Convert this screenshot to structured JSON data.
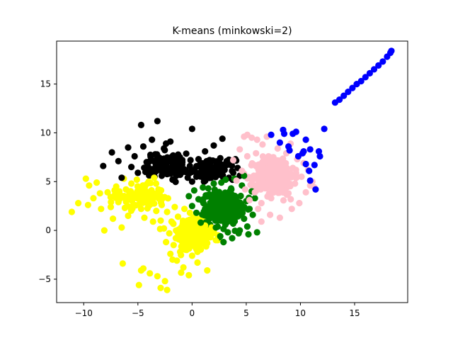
{
  "chart_data": {
    "type": "scatter",
    "title": "K-means (minkowski=2)",
    "xlabel": "",
    "ylabel": "",
    "xlim": [
      -12.5,
      19.9
    ],
    "ylim": [
      -7.4,
      19.4
    ],
    "xticks": [
      -10,
      -5,
      0,
      5,
      10,
      15
    ],
    "yticks": [
      -5,
      0,
      5,
      10,
      15
    ],
    "grid": false,
    "legend": "none",
    "series": [
      {
        "color": "#ffff00",
        "points": [
          [
            -11.1,
            1.9
          ],
          [
            -10.5,
            2.8
          ],
          [
            -9.8,
            5.3
          ],
          [
            -9.6,
            2.6
          ],
          [
            -9.5,
            4.6
          ],
          [
            -9.1,
            3.3
          ],
          [
            -8.8,
            4.9
          ],
          [
            -8.5,
            3.8
          ],
          [
            -8.4,
            2.2
          ],
          [
            -8.1,
            0.0
          ],
          [
            -7.8,
            3.9
          ],
          [
            -7.5,
            2.4
          ],
          [
            -7.3,
            1.2
          ],
          [
            -7.0,
            4.5
          ],
          [
            -6.8,
            2.9
          ],
          [
            -6.6,
            3.6
          ],
          [
            -6.5,
            0.3
          ],
          [
            -6.3,
            5.3
          ],
          [
            -6.2,
            2.3
          ],
          [
            -6.1,
            4.2
          ],
          [
            -5.9,
            1.5
          ],
          [
            -5.7,
            3.4
          ],
          [
            -5.6,
            4.8
          ],
          [
            -5.3,
            2.6
          ],
          [
            -5.1,
            5.2
          ],
          [
            -4.9,
            3.9
          ],
          [
            -4.7,
            2.2
          ],
          [
            -4.5,
            4.6
          ],
          [
            -4.4,
            1.3
          ],
          [
            -4.2,
            3.1
          ],
          [
            -4.0,
            5.0
          ],
          [
            -3.8,
            2.7
          ],
          [
            -3.7,
            3.9
          ],
          [
            -3.5,
            5.4
          ],
          [
            -3.3,
            2.0
          ],
          [
            -3.1,
            4.2
          ],
          [
            -2.9,
            1.0
          ],
          [
            -2.7,
            3.3
          ],
          [
            -2.6,
            0.2
          ],
          [
            -2.4,
            -1.2
          ],
          [
            -2.3,
            1.9
          ],
          [
            -2.1,
            -0.3
          ],
          [
            -2.0,
            -2.4
          ],
          [
            -1.9,
            0.9
          ],
          [
            -1.7,
            -1.5
          ],
          [
            -1.6,
            2.4
          ],
          [
            -1.5,
            -0.8
          ],
          [
            -1.4,
            -3.1
          ],
          [
            -1.3,
            1.4
          ],
          [
            -1.1,
            -2.2
          ],
          [
            -1.0,
            0.3
          ],
          [
            -0.9,
            -1.0
          ],
          [
            -0.8,
            -3.8
          ],
          [
            -0.7,
            2.2
          ],
          [
            -0.6,
            -0.4
          ],
          [
            -0.5,
            -2.0
          ],
          [
            -0.4,
            0.9
          ],
          [
            -0.3,
            -1.4
          ],
          [
            -0.2,
            1.8
          ],
          [
            -0.1,
            -0.7
          ],
          [
            0.0,
            -2.6
          ],
          [
            0.1,
            0.4
          ],
          [
            0.2,
            -1.6
          ],
          [
            0.3,
            1.1
          ],
          [
            0.4,
            -0.5
          ],
          [
            0.5,
            -2.2
          ],
          [
            0.7,
            0.2
          ],
          [
            0.8,
            -1.2
          ],
          [
            0.9,
            -0.2
          ],
          [
            1.1,
            -0.9
          ],
          [
            1.2,
            0.5
          ],
          [
            1.4,
            -1.3
          ],
          [
            1.5,
            -0.1
          ],
          [
            1.7,
            -0.7
          ],
          [
            1.8,
            0.3
          ],
          [
            2.0,
            -0.3
          ],
          [
            2.2,
            -1.0
          ],
          [
            2.4,
            -0.5
          ],
          [
            -4.7,
            -4.1
          ],
          [
            -4.5,
            -3.9
          ],
          [
            -3.9,
            -4.4
          ],
          [
            -3.2,
            -4.7
          ],
          [
            -2.5,
            -5.2
          ],
          [
            -2.3,
            -6.1
          ],
          [
            -2.9,
            -5.9
          ],
          [
            -4.9,
            -5.6
          ],
          [
            -6.4,
            -3.4
          ],
          [
            -1.8,
            -3.0
          ],
          [
            -0.3,
            -4.6
          ],
          [
            0.5,
            -3.3
          ],
          [
            1.4,
            -4.1
          ],
          [
            -5.4,
            3.7
          ],
          [
            -3.6,
            0.9
          ],
          [
            -2.8,
            2.6
          ]
        ]
      },
      {
        "color": "#000000",
        "points": [
          [
            -8.2,
            6.6
          ],
          [
            -7.4,
            8.0
          ],
          [
            -6.8,
            7.1
          ],
          [
            -6.5,
            5.4
          ],
          [
            -5.9,
            8.5
          ],
          [
            -5.6,
            6.5
          ],
          [
            -5.3,
            7.6
          ],
          [
            -5.0,
            5.9
          ],
          [
            -4.7,
            10.8
          ],
          [
            -4.5,
            8.6
          ],
          [
            -4.2,
            7.0
          ],
          [
            -3.9,
            6.2
          ],
          [
            -3.7,
            9.3
          ],
          [
            -3.4,
            7.8
          ],
          [
            -3.2,
            11.2
          ],
          [
            -3.0,
            6.8
          ],
          [
            -2.8,
            5.6
          ],
          [
            -2.6,
            8.4
          ],
          [
            -2.4,
            7.3
          ],
          [
            -2.2,
            6.1
          ],
          [
            -2.0,
            9.1
          ],
          [
            -1.8,
            5.2
          ],
          [
            -1.6,
            7.6
          ],
          [
            -1.3,
            6.4
          ],
          [
            -1.1,
            5.7
          ],
          [
            -0.9,
            7.0
          ],
          [
            -0.6,
            6.0
          ],
          [
            -0.4,
            5.4
          ],
          [
            -0.2,
            6.6
          ],
          [
            0.0,
            5.0
          ],
          [
            0.2,
            6.2
          ],
          [
            0.4,
            5.5
          ],
          [
            0.6,
            7.3
          ],
          [
            0.8,
            5.8
          ],
          [
            1.0,
            6.5
          ],
          [
            1.2,
            8.1
          ],
          [
            1.4,
            5.6
          ],
          [
            1.6,
            7.0
          ],
          [
            1.8,
            6.0
          ],
          [
            2.0,
            8.7
          ],
          [
            2.2,
            6.6
          ],
          [
            2.4,
            5.7
          ],
          [
            2.6,
            7.4
          ],
          [
            2.8,
            9.4
          ],
          [
            3.0,
            6.2
          ],
          [
            3.2,
            7.1
          ],
          [
            3.4,
            5.4
          ],
          [
            3.6,
            6.7
          ],
          [
            3.8,
            5.9
          ],
          [
            4.0,
            7.3
          ],
          [
            4.2,
            6.4
          ],
          [
            4.4,
            5.6
          ],
          [
            0.0,
            10.4
          ],
          [
            -2.4,
            8.9
          ],
          [
            -4.3,
            6.0
          ]
        ]
      },
      {
        "color": "#008000",
        "points": [
          [
            -0.3,
            3.5
          ],
          [
            0.0,
            2.5
          ],
          [
            0.2,
            4.1
          ],
          [
            0.4,
            1.8
          ],
          [
            0.6,
            3.2
          ],
          [
            0.8,
            0.8
          ],
          [
            1.0,
            4.4
          ],
          [
            1.2,
            2.2
          ],
          [
            1.4,
            3.6
          ],
          [
            1.6,
            1.2
          ],
          [
            1.8,
            2.9
          ],
          [
            2.0,
            4.8
          ],
          [
            2.2,
            0.3
          ],
          [
            2.3,
            2.0
          ],
          [
            2.5,
            3.9
          ],
          [
            2.6,
            -0.6
          ],
          [
            2.8,
            1.5
          ],
          [
            3.0,
            3.1
          ],
          [
            3.1,
            5.2
          ],
          [
            3.3,
            -0.2
          ],
          [
            3.5,
            2.4
          ],
          [
            3.6,
            4.3
          ],
          [
            3.8,
            0.7
          ],
          [
            4.0,
            1.8
          ],
          [
            4.1,
            3.4
          ],
          [
            4.3,
            -0.3
          ],
          [
            4.5,
            2.6
          ],
          [
            4.6,
            4.6
          ],
          [
            4.8,
            1.2
          ],
          [
            5.0,
            3.0
          ],
          [
            5.1,
            0.4
          ],
          [
            5.3,
            2.2
          ],
          [
            5.5,
            4.0
          ],
          [
            5.6,
            1.6
          ],
          [
            5.8,
            3.3
          ],
          [
            6.0,
            -0.2
          ],
          [
            5.2,
            -0.4
          ],
          [
            4.4,
            0.0
          ],
          [
            3.7,
            -0.8
          ],
          [
            2.9,
            -1.2
          ],
          [
            2.7,
            4.9
          ],
          [
            3.9,
            5.3
          ],
          [
            4.8,
            5.6
          ],
          [
            1.5,
            4.3
          ],
          [
            2.1,
            1.4
          ]
        ]
      },
      {
        "color": "#ffc0cb",
        "points": [
          [
            3.8,
            7.2
          ],
          [
            4.1,
            5.1
          ],
          [
            4.4,
            8.3
          ],
          [
            4.6,
            6.1
          ],
          [
            4.9,
            4.2
          ],
          [
            5.1,
            7.6
          ],
          [
            5.3,
            3.1
          ],
          [
            5.5,
            9.5
          ],
          [
            5.7,
            5.6
          ],
          [
            5.9,
            7.9
          ],
          [
            6.1,
            2.2
          ],
          [
            6.3,
            6.6
          ],
          [
            6.5,
            8.8
          ],
          [
            6.7,
            4.5
          ],
          [
            6.9,
            9.6
          ],
          [
            7.1,
            6.0
          ],
          [
            7.3,
            3.3
          ],
          [
            7.5,
            7.5
          ],
          [
            7.7,
            5.2
          ],
          [
            7.9,
            8.4
          ],
          [
            8.1,
            1.3
          ],
          [
            8.3,
            6.8
          ],
          [
            8.5,
            4.1
          ],
          [
            8.7,
            7.9
          ],
          [
            8.9,
            5.7
          ],
          [
            9.1,
            3.2
          ],
          [
            9.3,
            6.4
          ],
          [
            9.5,
            4.8
          ],
          [
            9.7,
            7.3
          ],
          [
            9.9,
            2.8
          ],
          [
            10.1,
            5.5
          ],
          [
            10.3,
            6.9
          ],
          [
            10.5,
            3.9
          ],
          [
            10.7,
            6.2
          ],
          [
            10.9,
            4.6
          ],
          [
            11.1,
            5.0
          ],
          [
            11.3,
            4.4
          ],
          [
            6.4,
            2.8
          ],
          [
            7.2,
            1.6
          ],
          [
            9.2,
            2.2
          ],
          [
            5.1,
            9.8
          ],
          [
            6.0,
            9.3
          ],
          [
            4.8,
            9.6
          ],
          [
            6.4,
            0.9
          ],
          [
            5.8,
            3.9
          ]
        ]
      },
      {
        "color": "#0000ff",
        "points": [
          [
            7.3,
            9.8
          ],
          [
            8.1,
            9.0
          ],
          [
            8.5,
            9.9
          ],
          [
            8.4,
            10.3
          ],
          [
            8.9,
            8.6
          ],
          [
            9.3,
            9.9
          ],
          [
            9.6,
            10.1
          ],
          [
            9.0,
            8.2
          ],
          [
            9.8,
            7.6
          ],
          [
            10.3,
            8.1
          ],
          [
            10.2,
            7.9
          ],
          [
            10.5,
            9.3
          ],
          [
            10.9,
            8.3
          ],
          [
            11.3,
            6.7
          ],
          [
            11.7,
            8.1
          ],
          [
            12.2,
            10.4
          ],
          [
            11.8,
            7.6
          ],
          [
            10.8,
            6.1
          ],
          [
            10.5,
            6.8
          ],
          [
            11.4,
            4.2
          ],
          [
            10.9,
            5.1
          ],
          [
            13.2,
            13.1
          ],
          [
            13.6,
            13.4
          ],
          [
            14.0,
            13.8
          ],
          [
            14.4,
            14.2
          ],
          [
            14.8,
            14.6
          ],
          [
            15.2,
            15.0
          ],
          [
            15.6,
            15.3
          ],
          [
            16.0,
            15.7
          ],
          [
            16.4,
            16.1
          ],
          [
            16.8,
            16.5
          ],
          [
            17.2,
            16.9
          ],
          [
            17.6,
            17.3
          ],
          [
            18.0,
            17.8
          ],
          [
            18.3,
            18.2
          ],
          [
            18.4,
            18.4
          ]
        ]
      }
    ],
    "blobs": [
      {
        "color": "#ffff00",
        "cx": 0.2,
        "cy": -0.3,
        "sx": 1.3,
        "sy": 1.6,
        "n": 220
      },
      {
        "color": "#ffff00",
        "cx": -4.8,
        "cy": 3.4,
        "sx": 1.8,
        "sy": 1.0,
        "n": 90
      },
      {
        "color": "#000000",
        "cx": -2.4,
        "cy": 6.7,
        "sx": 1.6,
        "sy": 1.0,
        "n": 110
      },
      {
        "color": "#000000",
        "cx": 2.0,
        "cy": 6.2,
        "sx": 1.6,
        "sy": 0.8,
        "n": 80
      },
      {
        "color": "#008000",
        "cx": 2.9,
        "cy": 2.3,
        "sx": 1.3,
        "sy": 1.3,
        "n": 330
      },
      {
        "color": "#ffc0cb",
        "cx": 7.6,
        "cy": 5.6,
        "sx": 1.5,
        "sy": 1.6,
        "n": 330
      }
    ]
  }
}
